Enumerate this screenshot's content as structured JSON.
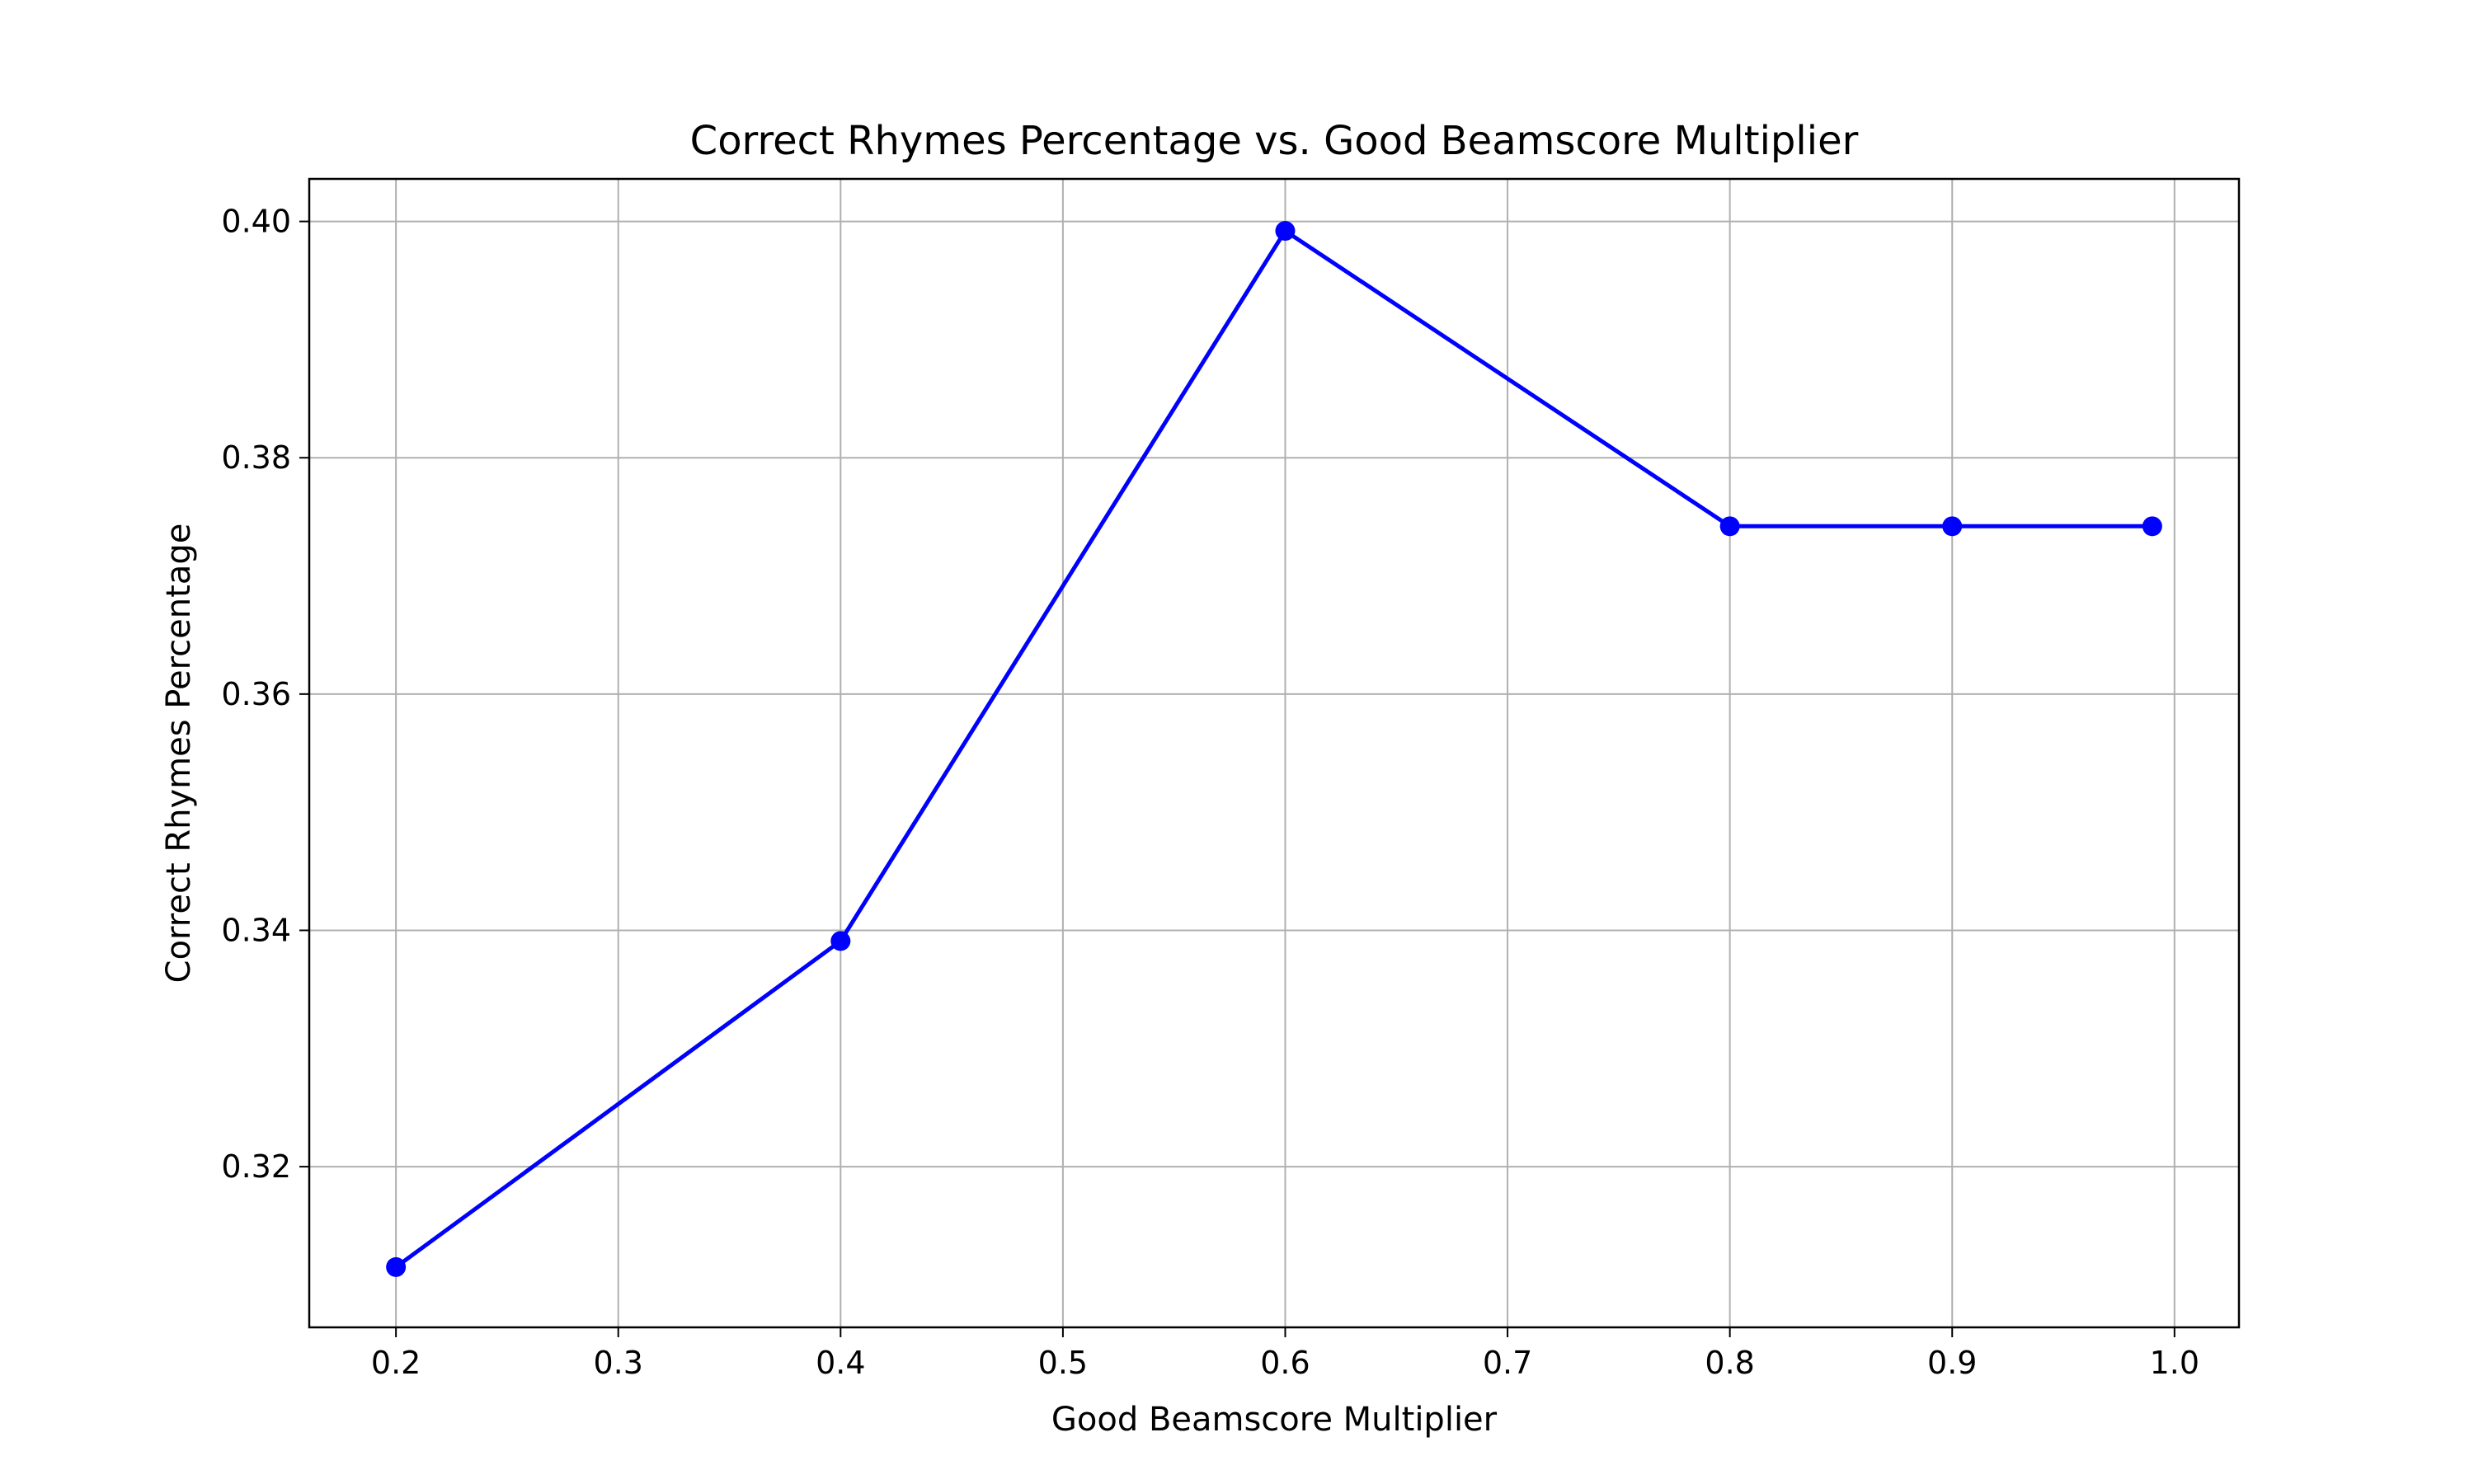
{
  "chart_data": {
    "type": "line",
    "title": "Correct Rhymes Percentage vs. Good Beamscore Multiplier",
    "xlabel": "Good Beamscore Multiplier",
    "ylabel": "Correct Rhymes Percentage",
    "xlim": [
      0.161,
      1.029
    ],
    "ylim": [
      0.3064,
      0.4036
    ],
    "xticks": [
      0.2,
      0.3,
      0.4,
      0.5,
      0.6,
      0.7,
      0.8,
      0.9,
      1.0
    ],
    "xtick_labels": [
      "0.2",
      "0.3",
      "0.4",
      "0.5",
      "0.6",
      "0.7",
      "0.8",
      "0.9",
      "1.0"
    ],
    "yticks": [
      0.32,
      0.34,
      0.36,
      0.38,
      0.4
    ],
    "ytick_labels": [
      "0.32",
      "0.34",
      "0.36",
      "0.38",
      "0.40"
    ],
    "grid": true,
    "series": [
      {
        "x": [
          0.2,
          0.4,
          0.6,
          0.8,
          0.9,
          0.99
        ],
        "y": [
          0.3115,
          0.3391,
          0.3992,
          0.3742,
          0.3742,
          0.3742
        ],
        "color": "#0000ff",
        "marker": "circle"
      }
    ]
  },
  "colors": {
    "line": "#0000ff",
    "grid": "#b0b0b0",
    "axes": "#000000",
    "background": "#ffffff"
  }
}
